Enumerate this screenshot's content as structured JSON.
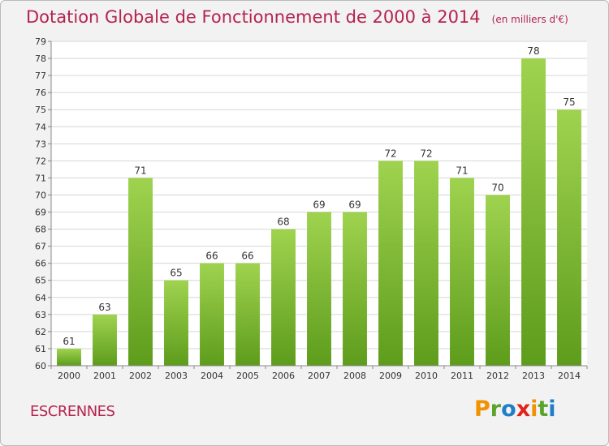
{
  "header": {
    "title": "Dotation Globale de Fonctionnement de 2000 à 2014",
    "unit": "(en milliers d'€)"
  },
  "footer": {
    "commune": "ESCRENNES",
    "logo_letters": [
      "P",
      "r",
      "o",
      "x",
      "i",
      "t",
      "i"
    ],
    "logo_colors": [
      "#f39200",
      "#5ba32b",
      "#1f7fc6",
      "#e2231a",
      "#f39200",
      "#5ba32b",
      "#1f7fc6"
    ]
  },
  "chart_data": {
    "type": "bar",
    "title": "Dotation Globale de Fonctionnement de 2000 à 2014",
    "subtitle": "(en milliers d'€)",
    "categories": [
      "2000",
      "2001",
      "2002",
      "2003",
      "2004",
      "2005",
      "2006",
      "2007",
      "2008",
      "2009",
      "2010",
      "2011",
      "2012",
      "2013",
      "2014"
    ],
    "values": [
      61,
      63,
      71,
      65,
      66,
      66,
      68,
      69,
      69,
      72,
      72,
      71,
      70,
      78,
      75
    ],
    "ylim": [
      60,
      79
    ],
    "yticks": [
      60,
      61,
      62,
      63,
      64,
      65,
      66,
      67,
      68,
      69,
      70,
      71,
      72,
      73,
      74,
      75,
      76,
      77,
      78,
      79
    ],
    "grid": true,
    "bar_color_top": "#9fd34f",
    "bar_color_bottom": "#5e9c1c",
    "grid_color": "#d6d6d6"
  }
}
